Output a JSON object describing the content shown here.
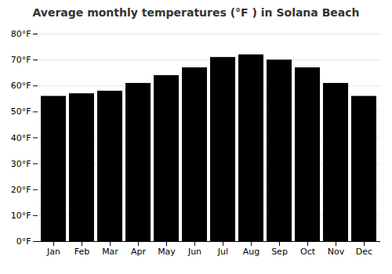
{
  "chart_data": {
    "type": "bar",
    "title": "Average monthly temperatures (°F ) in Solana Beach",
    "categories": [
      "Jan",
      "Feb",
      "Mar",
      "Apr",
      "May",
      "Jun",
      "Jul",
      "Aug",
      "Sep",
      "Oct",
      "Nov",
      "Dec"
    ],
    "values": [
      56,
      57,
      58,
      61,
      64,
      67,
      71,
      72,
      70,
      67,
      61,
      56
    ],
    "ylim": [
      0,
      80
    ],
    "yticks": [
      {
        "value": 0,
        "label": "0°F"
      },
      {
        "value": 10,
        "label": "10°F"
      },
      {
        "value": 20,
        "label": "20°F"
      },
      {
        "value": 30,
        "label": "30°F"
      },
      {
        "value": 40,
        "label": "40°F"
      },
      {
        "value": 50,
        "label": "50°F"
      },
      {
        "value": 60,
        "label": "60°F"
      },
      {
        "value": 70,
        "label": "70°F"
      },
      {
        "value": 80,
        "label": "80°F"
      }
    ],
    "grid": true
  }
}
